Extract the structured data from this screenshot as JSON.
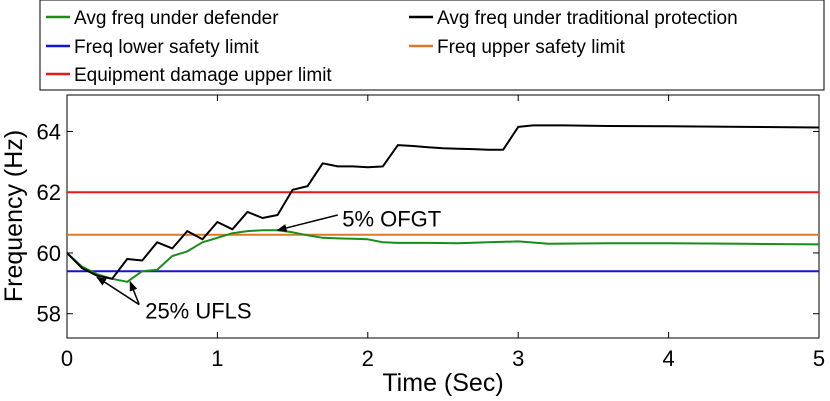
{
  "chart_data": {
    "type": "line",
    "xlabel": "Time (Sec)",
    "ylabel": "Frequency (Hz)",
    "xlim": [
      0,
      5
    ],
    "ylim": [
      57.2,
      65.2
    ],
    "xticks": [
      0,
      1,
      2,
      3,
      4,
      5
    ],
    "yticks": [
      58,
      60,
      62,
      64
    ],
    "legend_position": "top",
    "series": [
      {
        "name": "Avg freq under defender",
        "color": "#1a8c1a",
        "x": [
          0,
          0.1,
          0.2,
          0.3,
          0.4,
          0.5,
          0.6,
          0.7,
          0.8,
          0.9,
          1.0,
          1.1,
          1.2,
          1.3,
          1.4,
          1.5,
          1.6,
          1.7,
          1.8,
          1.9,
          2.0,
          2.1,
          2.2,
          2.4,
          2.6,
          2.8,
          3.0,
          3.2,
          3.6,
          4.0,
          4.5,
          5.0
        ],
        "y": [
          60.0,
          59.55,
          59.3,
          59.15,
          59.05,
          59.4,
          59.45,
          59.9,
          60.05,
          60.35,
          60.5,
          60.65,
          60.72,
          60.75,
          60.75,
          60.68,
          60.58,
          60.5,
          60.48,
          60.47,
          60.45,
          60.35,
          60.33,
          60.33,
          60.32,
          60.35,
          60.38,
          60.3,
          60.32,
          60.32,
          60.3,
          60.28
        ]
      },
      {
        "name": "Avg freq under traditional protection",
        "color": "#000000",
        "x": [
          0,
          0.1,
          0.2,
          0.3,
          0.4,
          0.5,
          0.6,
          0.7,
          0.8,
          0.9,
          1.0,
          1.1,
          1.2,
          1.3,
          1.4,
          1.5,
          1.6,
          1.7,
          1.8,
          1.9,
          2.0,
          2.1,
          2.2,
          2.3,
          2.4,
          2.5,
          2.6,
          2.7,
          2.8,
          2.9,
          3.0,
          3.1,
          3.3,
          3.6,
          4.0,
          4.5,
          5.0
        ],
        "y": [
          60.0,
          59.5,
          59.25,
          59.15,
          59.8,
          59.75,
          60.35,
          60.15,
          60.72,
          60.45,
          61.02,
          60.78,
          61.35,
          61.15,
          61.25,
          62.08,
          62.2,
          62.95,
          62.85,
          62.85,
          62.82,
          62.85,
          63.55,
          63.52,
          63.48,
          63.45,
          63.43,
          63.42,
          63.4,
          63.4,
          64.15,
          64.2,
          64.2,
          64.18,
          64.17,
          64.15,
          64.13
        ]
      },
      {
        "name": "Freq lower safety limit",
        "color": "#1414d2",
        "x": [
          0,
          5
        ],
        "y": [
          59.4,
          59.4
        ]
      },
      {
        "name": "Freq upper safety limit",
        "color": "#d97a2b",
        "x": [
          0,
          5
        ],
        "y": [
          60.6,
          60.6
        ]
      },
      {
        "name": "Equipment damage upper limit",
        "color": "#e61919",
        "x": [
          0,
          5
        ],
        "y": [
          62,
          62
        ]
      }
    ],
    "annotations": [
      {
        "text": "5% OFGT",
        "target": [
          1.4,
          60.75
        ],
        "label_at": [
          1.83,
          61.1
        ],
        "arrow_from": [
          1.8,
          61.25
        ]
      },
      {
        "text": "25% UFLS",
        "label_at": [
          0.52,
          58.1
        ],
        "arrow_from": [
          0.48,
          58.3
        ],
        "targets": [
          [
            0.2,
            59.2
          ],
          [
            0.42,
            59.05
          ]
        ]
      }
    ]
  }
}
